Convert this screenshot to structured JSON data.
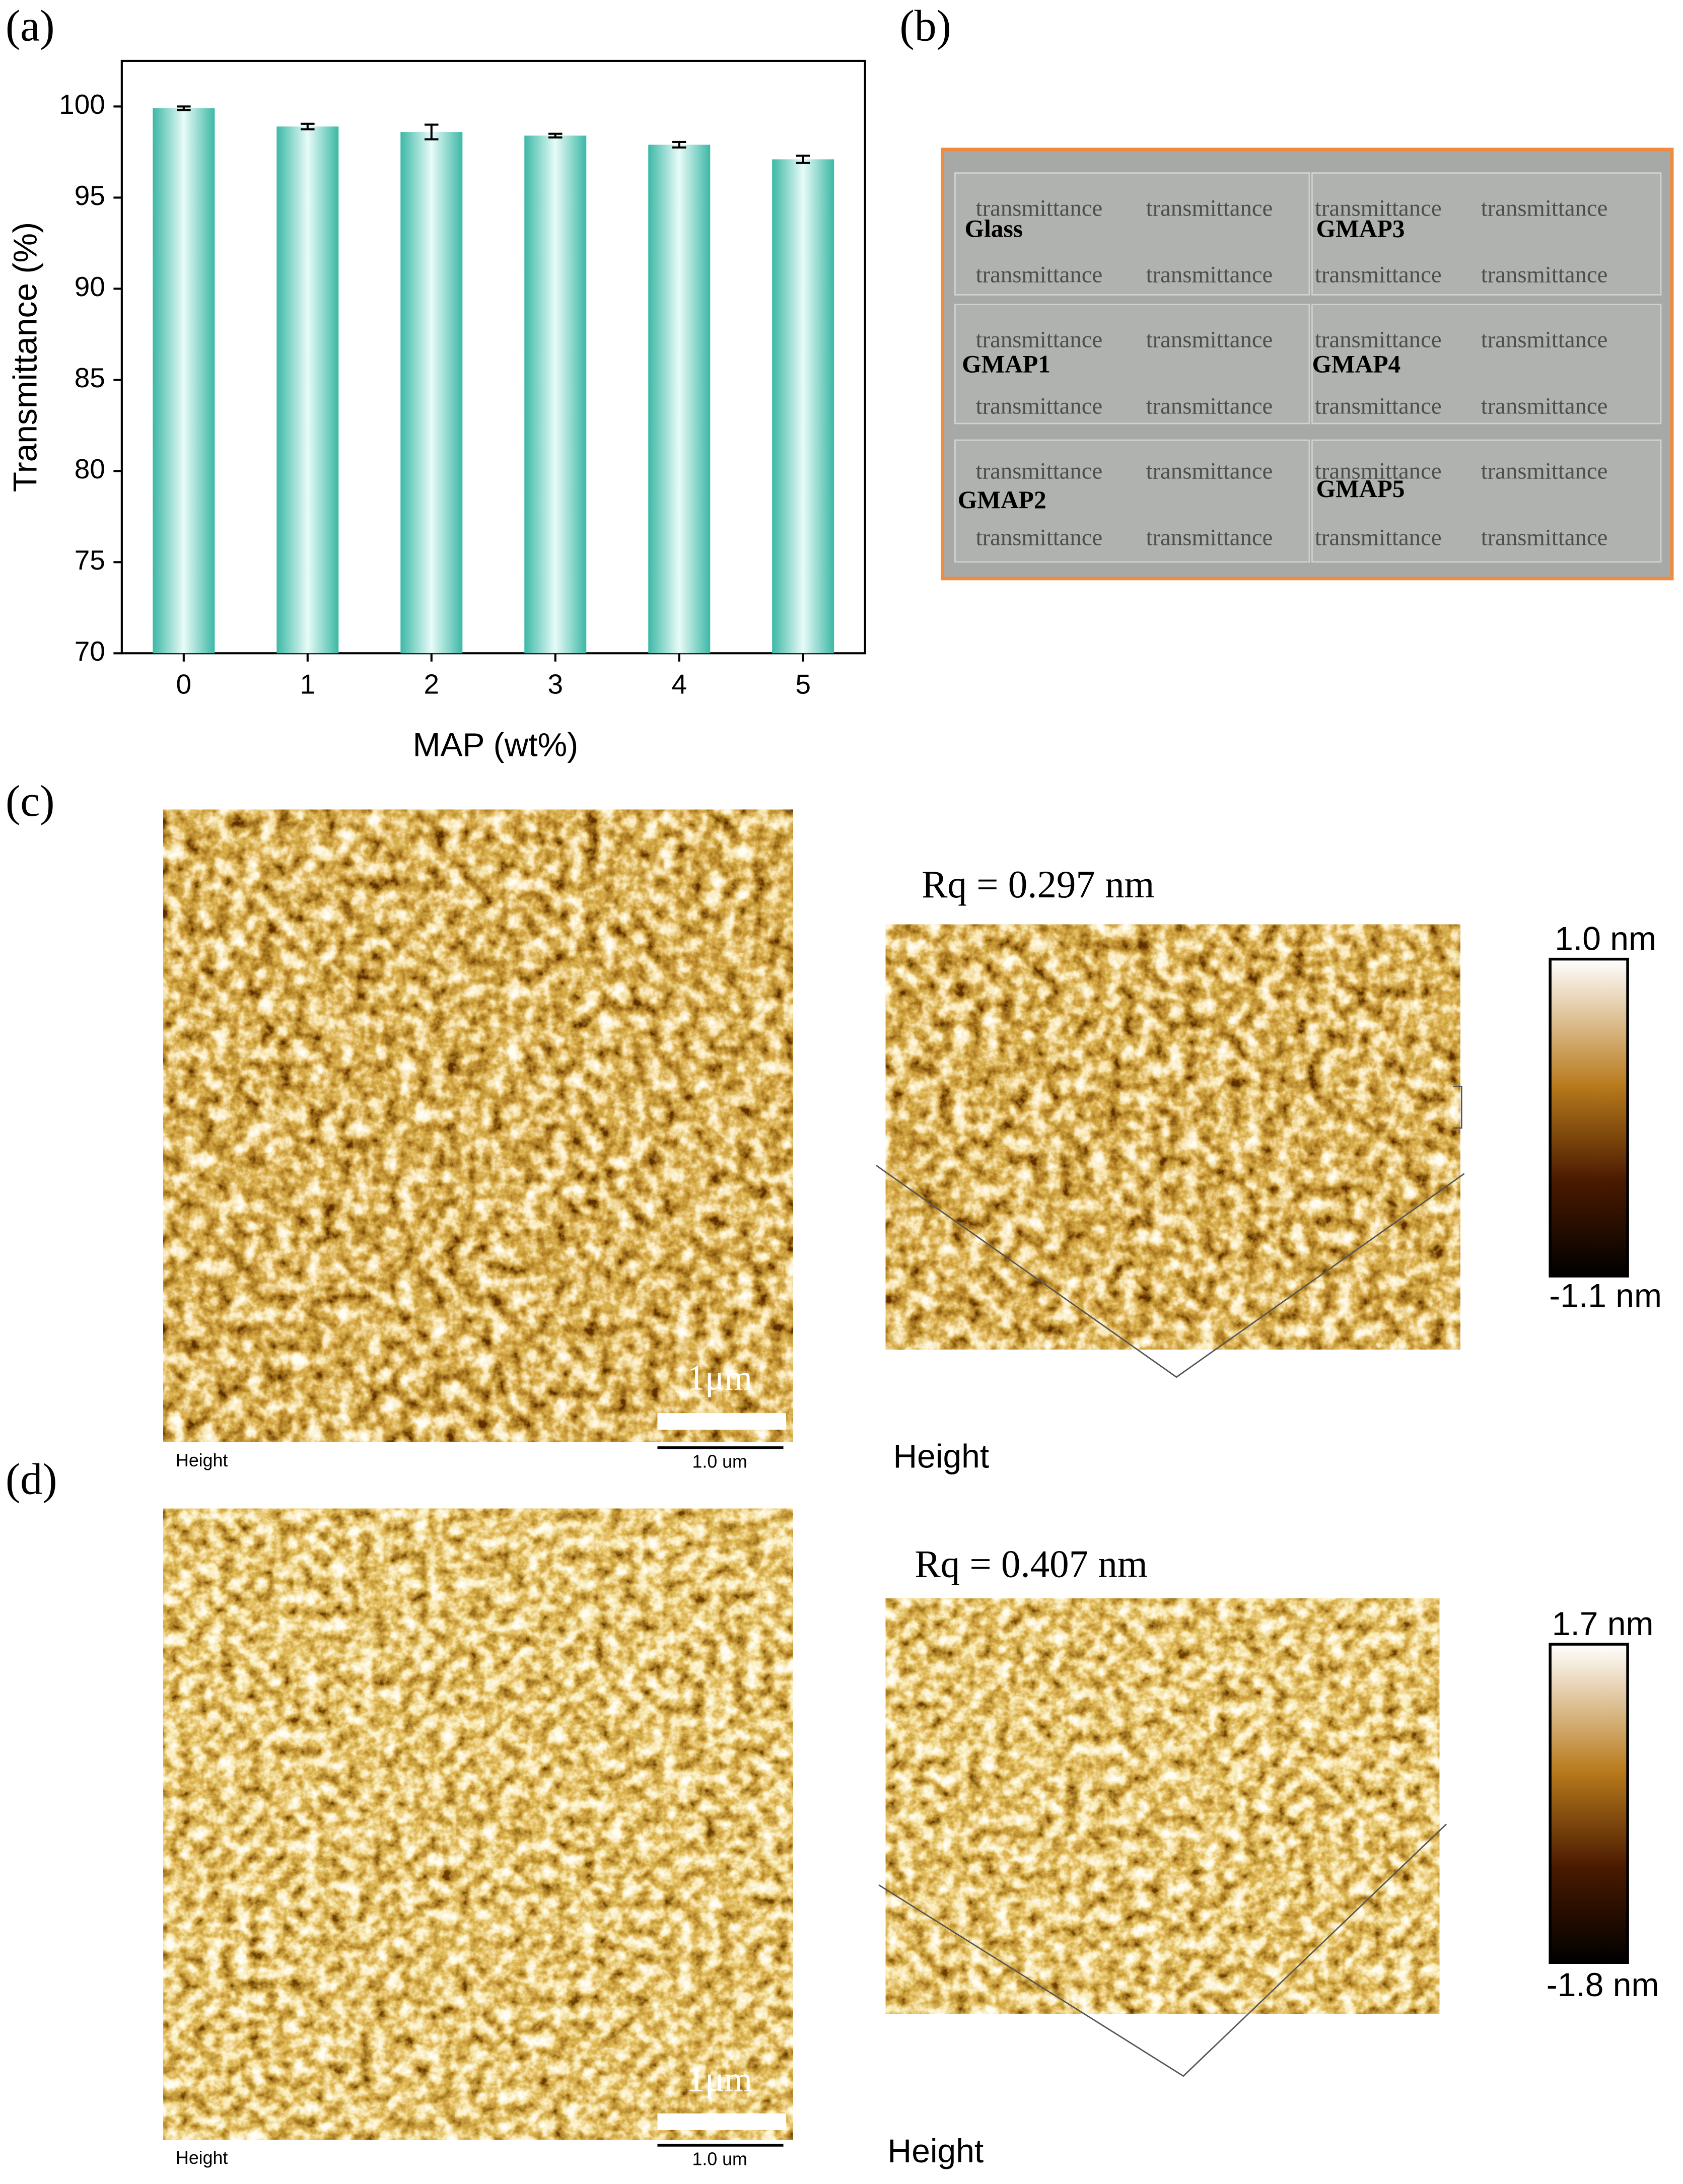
{
  "chart_data": {
    "type": "bar",
    "y_label": "Transmittance (%)",
    "x_label": "MAP (wt%)",
    "categories": [
      "0",
      "1",
      "2",
      "3",
      "4",
      "5"
    ],
    "values": [
      99.9,
      98.9,
      98.6,
      98.4,
      97.9,
      97.1
    ],
    "errors": [
      0.1,
      0.15,
      0.4,
      0.1,
      0.15,
      0.2
    ],
    "color": "#3cb8a6",
    "ylim": [
      70,
      102.5
    ],
    "yticks": [
      70,
      75,
      80,
      85,
      90,
      95,
      100
    ]
  },
  "panel_labels": [
    "(a)",
    "(b)",
    "(c)",
    "(d)"
  ],
  "photo": {
    "background_text": "transmittance",
    "labels": [
      "Glass",
      "GMAP3",
      "GMAP1",
      "GMAP4",
      "GMAP2",
      "GMAP5"
    ]
  },
  "afm": [
    {
      "rq": "Rq = 0.297 nm",
      "colorbar_max": "1.0 nm",
      "colorbar_min": "-1.1 nm",
      "scale_bar": "1μm",
      "image_label": "Height",
      "scale_label": "1.0 um",
      "surface_label": "Height"
    },
    {
      "rq": "Rq = 0.407 nm",
      "colorbar_max": "1.7 nm",
      "colorbar_min": "-1.8 nm",
      "scale_bar": "1μm",
      "image_label": "Height",
      "scale_label": "1.0 um",
      "surface_label": "Height"
    }
  ]
}
